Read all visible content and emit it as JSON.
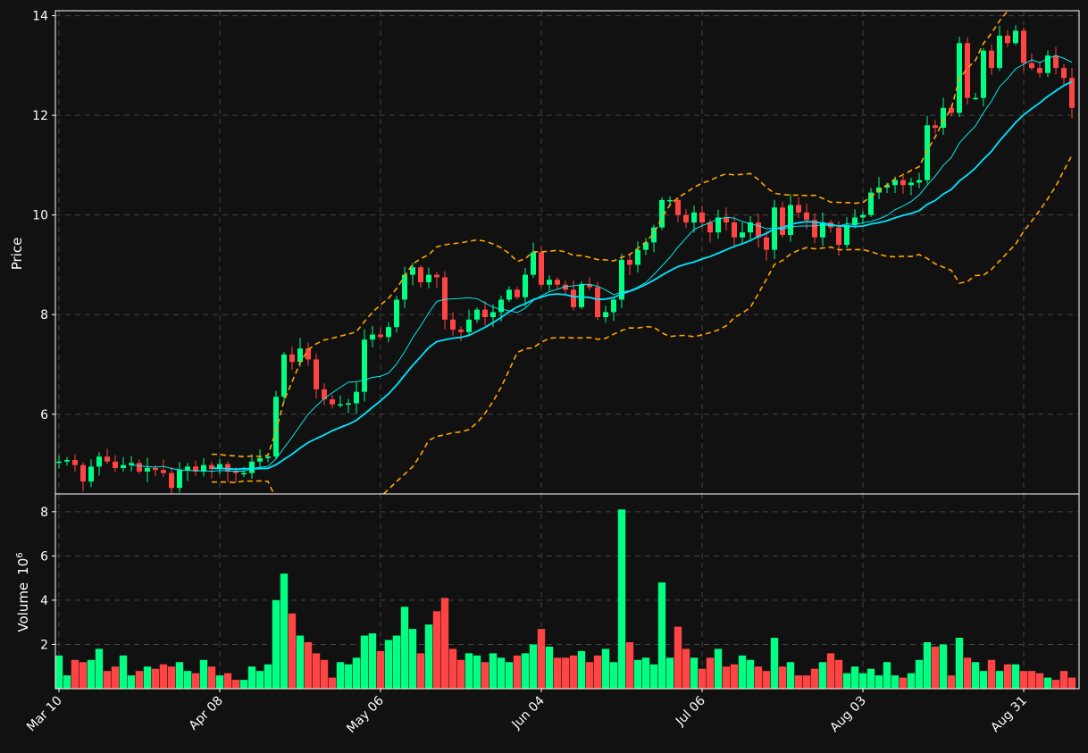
{
  "chart_data": {
    "type": "candlestick",
    "panels": [
      {
        "name": "price",
        "ylabel": "Price",
        "ylim": [
          4.4,
          14.1
        ],
        "yticks": [
          6,
          8,
          10,
          12,
          14
        ],
        "grid": true,
        "overlays": [
          {
            "label": "fast-ma",
            "color": "#00ffff",
            "style": "thin solid"
          },
          {
            "label": "slow-ma",
            "color": "#00e5ff",
            "style": "thick solid"
          },
          {
            "label": "upper-band",
            "color": "#ffa500",
            "style": "dashed"
          },
          {
            "label": "lower-band",
            "color": "#ffa500",
            "style": "dashed"
          }
        ]
      },
      {
        "name": "volume",
        "ylabel": "Volume",
        "ylabel_exponent": "6",
        "ylim": [
          0,
          8.8
        ],
        "yticks": [
          2,
          4,
          6,
          8
        ],
        "grid": true
      }
    ],
    "x_tick_labels": [
      "Mar 10",
      "Apr 08",
      "May 06",
      "Jun 04",
      "Jul 06",
      "Aug 03",
      "Aug 31"
    ],
    "x_tick_index": [
      0,
      20,
      40,
      60,
      80,
      100,
      120
    ],
    "colors": {
      "up": "#00ff83",
      "down": "#ff4444",
      "background": "#111111",
      "axis": "#ffffff",
      "grid": "#444444"
    },
    "closes": [
      5.05,
      5.08,
      4.98,
      4.65,
      4.95,
      5.15,
      5.05,
      4.92,
      4.98,
      5.02,
      4.85,
      4.92,
      4.88,
      4.82,
      4.52,
      4.88,
      4.95,
      4.85,
      4.98,
      4.9,
      5.0,
      4.85,
      4.82,
      4.82,
      5.05,
      5.12,
      5.15,
      6.35,
      7.2,
      7.05,
      7.32,
      7.1,
      6.5,
      6.3,
      6.2,
      6.2,
      6.22,
      6.45,
      7.5,
      7.6,
      7.55,
      7.75,
      8.3,
      8.8,
      8.95,
      8.65,
      8.8,
      8.75,
      7.9,
      7.7,
      7.65,
      7.9,
      8.1,
      7.95,
      8.05,
      8.3,
      8.5,
      8.35,
      8.8,
      9.25,
      8.6,
      8.7,
      8.6,
      8.5,
      8.15,
      8.6,
      8.55,
      7.95,
      8.05,
      8.3,
      9.1,
      9.0,
      9.3,
      9.45,
      9.75,
      10.3,
      10.3,
      10.0,
      9.85,
      10.05,
      9.85,
      9.65,
      9.95,
      9.85,
      9.55,
      9.65,
      9.85,
      9.55,
      9.3,
      10.15,
      9.6,
      10.2,
      10.05,
      9.9,
      9.55,
      9.85,
      9.75,
      9.4,
      9.8,
      9.95,
      10.0,
      10.45,
      10.55,
      10.6,
      10.7,
      10.6,
      10.65,
      10.7,
      11.8,
      11.75,
      12.15,
      12.05,
      13.45,
      12.35,
      12.35,
      13.3,
      12.95,
      13.6,
      13.45,
      13.7,
      13.05,
      12.95,
      12.85,
      13.2,
      12.95,
      12.75,
      12.15
    ],
    "volumes": [
      1.5,
      0.6,
      1.3,
      1.2,
      1.3,
      1.8,
      0.8,
      1.0,
      1.5,
      0.6,
      0.8,
      1.0,
      0.9,
      1.1,
      1.0,
      1.2,
      0.8,
      0.7,
      1.3,
      1.0,
      0.6,
      0.7,
      0.4,
      0.4,
      1.0,
      0.8,
      1.1,
      4.0,
      5.2,
      3.4,
      2.4,
      2.1,
      1.6,
      1.3,
      0.5,
      1.2,
      1.1,
      1.4,
      2.4,
      2.5,
      1.7,
      2.2,
      2.4,
      3.7,
      2.7,
      1.6,
      2.9,
      3.5,
      4.1,
      1.8,
      1.3,
      1.6,
      1.5,
      1.2,
      1.6,
      1.4,
      1.2,
      1.5,
      1.6,
      2.0,
      2.7,
      1.9,
      1.4,
      1.4,
      1.5,
      1.7,
      1.2,
      1.5,
      1.8,
      1.2,
      8.1,
      2.1,
      1.3,
      1.4,
      1.1,
      4.8,
      1.4,
      2.8,
      1.8,
      1.4,
      0.9,
      1.4,
      1.8,
      1.0,
      1.1,
      1.5,
      1.3,
      1.0,
      0.8,
      2.3,
      1.0,
      1.2,
      0.6,
      0.6,
      0.9,
      1.2,
      1.6,
      1.3,
      0.7,
      1.0,
      0.7,
      0.9,
      0.6,
      1.2,
      0.6,
      0.5,
      0.7,
      1.3,
      2.1,
      1.9,
      2.0,
      0.6,
      2.3,
      1.4,
      1.2,
      0.8,
      1.3,
      0.8,
      1.1,
      1.1,
      0.8,
      0.8,
      0.7,
      0.5,
      0.4,
      0.8,
      0.5
    ]
  }
}
